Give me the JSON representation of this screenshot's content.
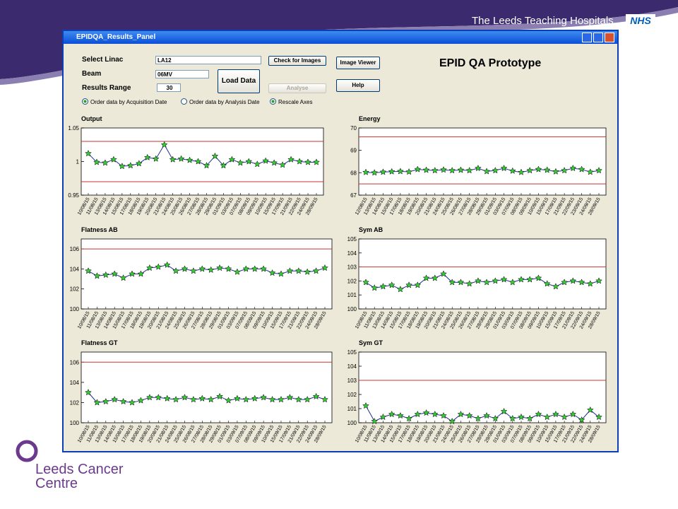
{
  "header": {
    "org": "The Leeds Teaching Hospitals",
    "badge": "NHS"
  },
  "footer": {
    "line1": "Leeds Cancer",
    "line2": "Centre"
  },
  "window": {
    "title": "EPIDQA_Results_Panel"
  },
  "controls": {
    "linac_label": "Select Linac",
    "linac_value": "LA12",
    "beam_label": "Beam",
    "beam_value": "06MV",
    "range_label": "Results Range",
    "range_value": "30",
    "load": "Load Data",
    "check": "Check for Images",
    "analyse": "Analyse",
    "viewer": "Image Viewer",
    "help": "Help",
    "app_title": "EPID QA Prototype",
    "radio1": "Order data by Acquisition Date",
    "radio2": "Order data by Analysis Date",
    "radio3": "Rescale Axes"
  },
  "chart_data": [
    {
      "type": "line",
      "title": "Output",
      "color": "#1f2f8f",
      "marker_color": "#33cc33",
      "limit_color": "#cc3333",
      "categories": [
        "10/08/15",
        "11/08/15",
        "13/08/15",
        "14/08/15",
        "15/08/15",
        "17/08/15",
        "18/08/15",
        "19/08/15",
        "20/08/15",
        "21/08/15",
        "24/08/15",
        "25/08/15",
        "26/08/15",
        "27/08/15",
        "28/08/15",
        "29/08/15",
        "01/09/15",
        "03/09/15",
        "07/09/15",
        "08/09/15",
        "09/09/15",
        "10/09/15",
        "15/09/15",
        "17/09/15",
        "21/09/15",
        "22/09/15",
        "24/09/15",
        "28/09/15"
      ],
      "values": [
        1.012,
        0.999,
        0.998,
        1.003,
        0.993,
        0.994,
        0.997,
        1.006,
        1.004,
        1.025,
        1.003,
        1.004,
        1.002,
        1.0,
        0.994,
        1.008,
        0.994,
        1.003,
        0.998,
        1.0,
        0.996,
        1.001,
        0.998,
        0.995,
        1.003,
        1.0,
        0.999,
        0.999
      ],
      "limits": [
        0.97,
        1.03
      ],
      "ylim": [
        0.95,
        1.05
      ],
      "yticks": [
        0.95,
        1,
        1.05
      ]
    },
    {
      "type": "line",
      "title": "Energy",
      "color": "#1f2f8f",
      "marker_color": "#33cc33",
      "limit_color": "#cc3333",
      "categories": [
        "12/08/15",
        "13/08/15",
        "14/08/15",
        "15/08/15",
        "17/08/15",
        "18/08/15",
        "19/08/15",
        "20/08/15",
        "21/08/15",
        "24/08/15",
        "25/08/15",
        "26/08/15",
        "27/08/15",
        "28/08/15",
        "29/08/15",
        "01/09/15",
        "03/09/15",
        "07/09/15",
        "08/09/15",
        "09/09/15",
        "10/09/15",
        "15/09/15",
        "17/09/15",
        "21/09/15",
        "22/09/15",
        "23/09/15",
        "24/09/15",
        "28/09/15"
      ],
      "values": [
        68.02,
        68.0,
        68.03,
        68.05,
        68.06,
        68.04,
        68.15,
        68.12,
        68.1,
        68.13,
        68.1,
        68.12,
        68.1,
        68.2,
        68.06,
        68.1,
        68.2,
        68.08,
        68.02,
        68.1,
        68.15,
        68.12,
        68.05,
        68.1,
        68.2,
        68.15,
        68.03,
        68.1
      ],
      "limits": [
        67.5,
        69.6
      ],
      "ylim": [
        67,
        70
      ],
      "yticks": [
        67,
        68,
        69,
        70
      ]
    },
    {
      "type": "line",
      "title": "Flatness AB",
      "color": "#1f2f8f",
      "marker_color": "#33cc33",
      "limit_color": "#cc3333",
      "categories": [
        "10/08/15",
        "11/08/15",
        "13/08/15",
        "14/08/15",
        "15/08/15",
        "17/08/15",
        "18/08/15",
        "19/08/15",
        "20/08/15",
        "21/08/15",
        "24/08/15",
        "25/08/15",
        "26/08/15",
        "27/08/15",
        "28/08/15",
        "29/08/15",
        "01/09/15",
        "03/09/15",
        "07/09/15",
        "08/09/15",
        "09/09/15",
        "10/09/15",
        "15/09/15",
        "17/09/15",
        "21/09/15",
        "22/09/15",
        "24/09/15",
        "28/09/15"
      ],
      "values": [
        103.8,
        103.3,
        103.4,
        103.5,
        103.1,
        103.5,
        103.5,
        104.1,
        104.2,
        104.4,
        103.8,
        104.0,
        103.8,
        104.0,
        103.9,
        104.1,
        104.0,
        103.7,
        104.0,
        104.0,
        104.0,
        103.6,
        103.5,
        103.8,
        103.8,
        103.7,
        103.8,
        104.1
      ],
      "limits": [
        106
      ],
      "ylim": [
        100,
        107
      ],
      "yticks": [
        100,
        102,
        104,
        106
      ]
    },
    {
      "type": "line",
      "title": "Sym AB",
      "color": "#1f2f8f",
      "marker_color": "#33cc33",
      "limit_color": "#cc3333",
      "categories": [
        "10/08/15",
        "11/08/15",
        "13/08/15",
        "14/08/15",
        "15/08/15",
        "17/08/15",
        "18/08/15",
        "19/08/15",
        "20/08/15",
        "21/08/15",
        "24/08/15",
        "25/08/15",
        "26/08/15",
        "27/08/15",
        "28/08/15",
        "29/08/15",
        "01/09/15",
        "03/09/15",
        "07/09/15",
        "08/09/15",
        "09/09/15",
        "10/09/15",
        "15/09/15",
        "17/09/15",
        "21/09/15",
        "22/09/15",
        "24/09/15",
        "28/09/15"
      ],
      "values": [
        101.9,
        101.5,
        101.6,
        101.7,
        101.4,
        101.7,
        101.7,
        102.2,
        102.2,
        102.5,
        101.9,
        101.9,
        101.8,
        102.0,
        101.9,
        102.0,
        102.1,
        101.9,
        102.1,
        102.1,
        102.2,
        101.8,
        101.6,
        101.9,
        102.0,
        101.9,
        101.8,
        102.0
      ],
      "limits": [
        103
      ],
      "ylim": [
        100,
        105
      ],
      "yticks": [
        100,
        101,
        102,
        103,
        104,
        105
      ]
    },
    {
      "type": "line",
      "title": "Flatness GT",
      "color": "#1f2f8f",
      "marker_color": "#33cc33",
      "limit_color": "#cc3333",
      "categories": [
        "10/08/15",
        "11/08/15",
        "13/08/15",
        "14/08/15",
        "15/08/15",
        "17/08/15",
        "18/08/15",
        "19/08/15",
        "20/08/15",
        "21/08/15",
        "24/08/15",
        "25/08/15",
        "26/08/15",
        "27/08/15",
        "28/08/15",
        "29/08/15",
        "01/09/15",
        "03/09/15",
        "07/09/15",
        "08/09/15",
        "09/09/15",
        "10/09/15",
        "15/09/15",
        "17/09/15",
        "21/09/15",
        "22/09/15",
        "24/09/15",
        "28/09/15"
      ],
      "values": [
        103.0,
        102.0,
        102.1,
        102.3,
        102.1,
        102.0,
        102.2,
        102.5,
        102.5,
        102.4,
        102.3,
        102.5,
        102.3,
        102.4,
        102.3,
        102.6,
        102.2,
        102.4,
        102.3,
        102.4,
        102.5,
        102.3,
        102.3,
        102.5,
        102.3,
        102.3,
        102.6,
        102.3
      ],
      "limits": [
        106
      ],
      "ylim": [
        100,
        107
      ],
      "yticks": [
        100,
        102,
        104,
        106
      ]
    },
    {
      "type": "line",
      "title": "Sym GT",
      "color": "#1f2f8f",
      "marker_color": "#33cc33",
      "limit_color": "#cc3333",
      "categories": [
        "10/08/15",
        "11/08/15",
        "13/08/15",
        "14/08/15",
        "15/08/15",
        "17/08/15",
        "18/08/15",
        "19/08/15",
        "20/08/15",
        "21/08/15",
        "24/08/15",
        "25/08/15",
        "26/08/15",
        "27/08/15",
        "28/08/15",
        "29/08/15",
        "01/09/15",
        "03/09/15",
        "07/09/15",
        "08/09/15",
        "09/09/15",
        "10/09/15",
        "15/09/15",
        "17/09/15",
        "21/09/15",
        "22/09/15",
        "24/09/15",
        "28/09/15"
      ],
      "values": [
        101.2,
        100.1,
        100.4,
        100.6,
        100.5,
        100.3,
        100.6,
        100.7,
        100.6,
        100.5,
        100.1,
        100.6,
        100.5,
        100.3,
        100.5,
        100.3,
        100.8,
        100.3,
        100.4,
        100.3,
        100.6,
        100.4,
        100.6,
        100.4,
        100.6,
        100.2,
        100.9,
        100.4
      ],
      "limits": [
        103
      ],
      "ylim": [
        100,
        105
      ],
      "yticks": [
        100,
        101,
        102,
        103,
        104,
        105
      ]
    }
  ]
}
